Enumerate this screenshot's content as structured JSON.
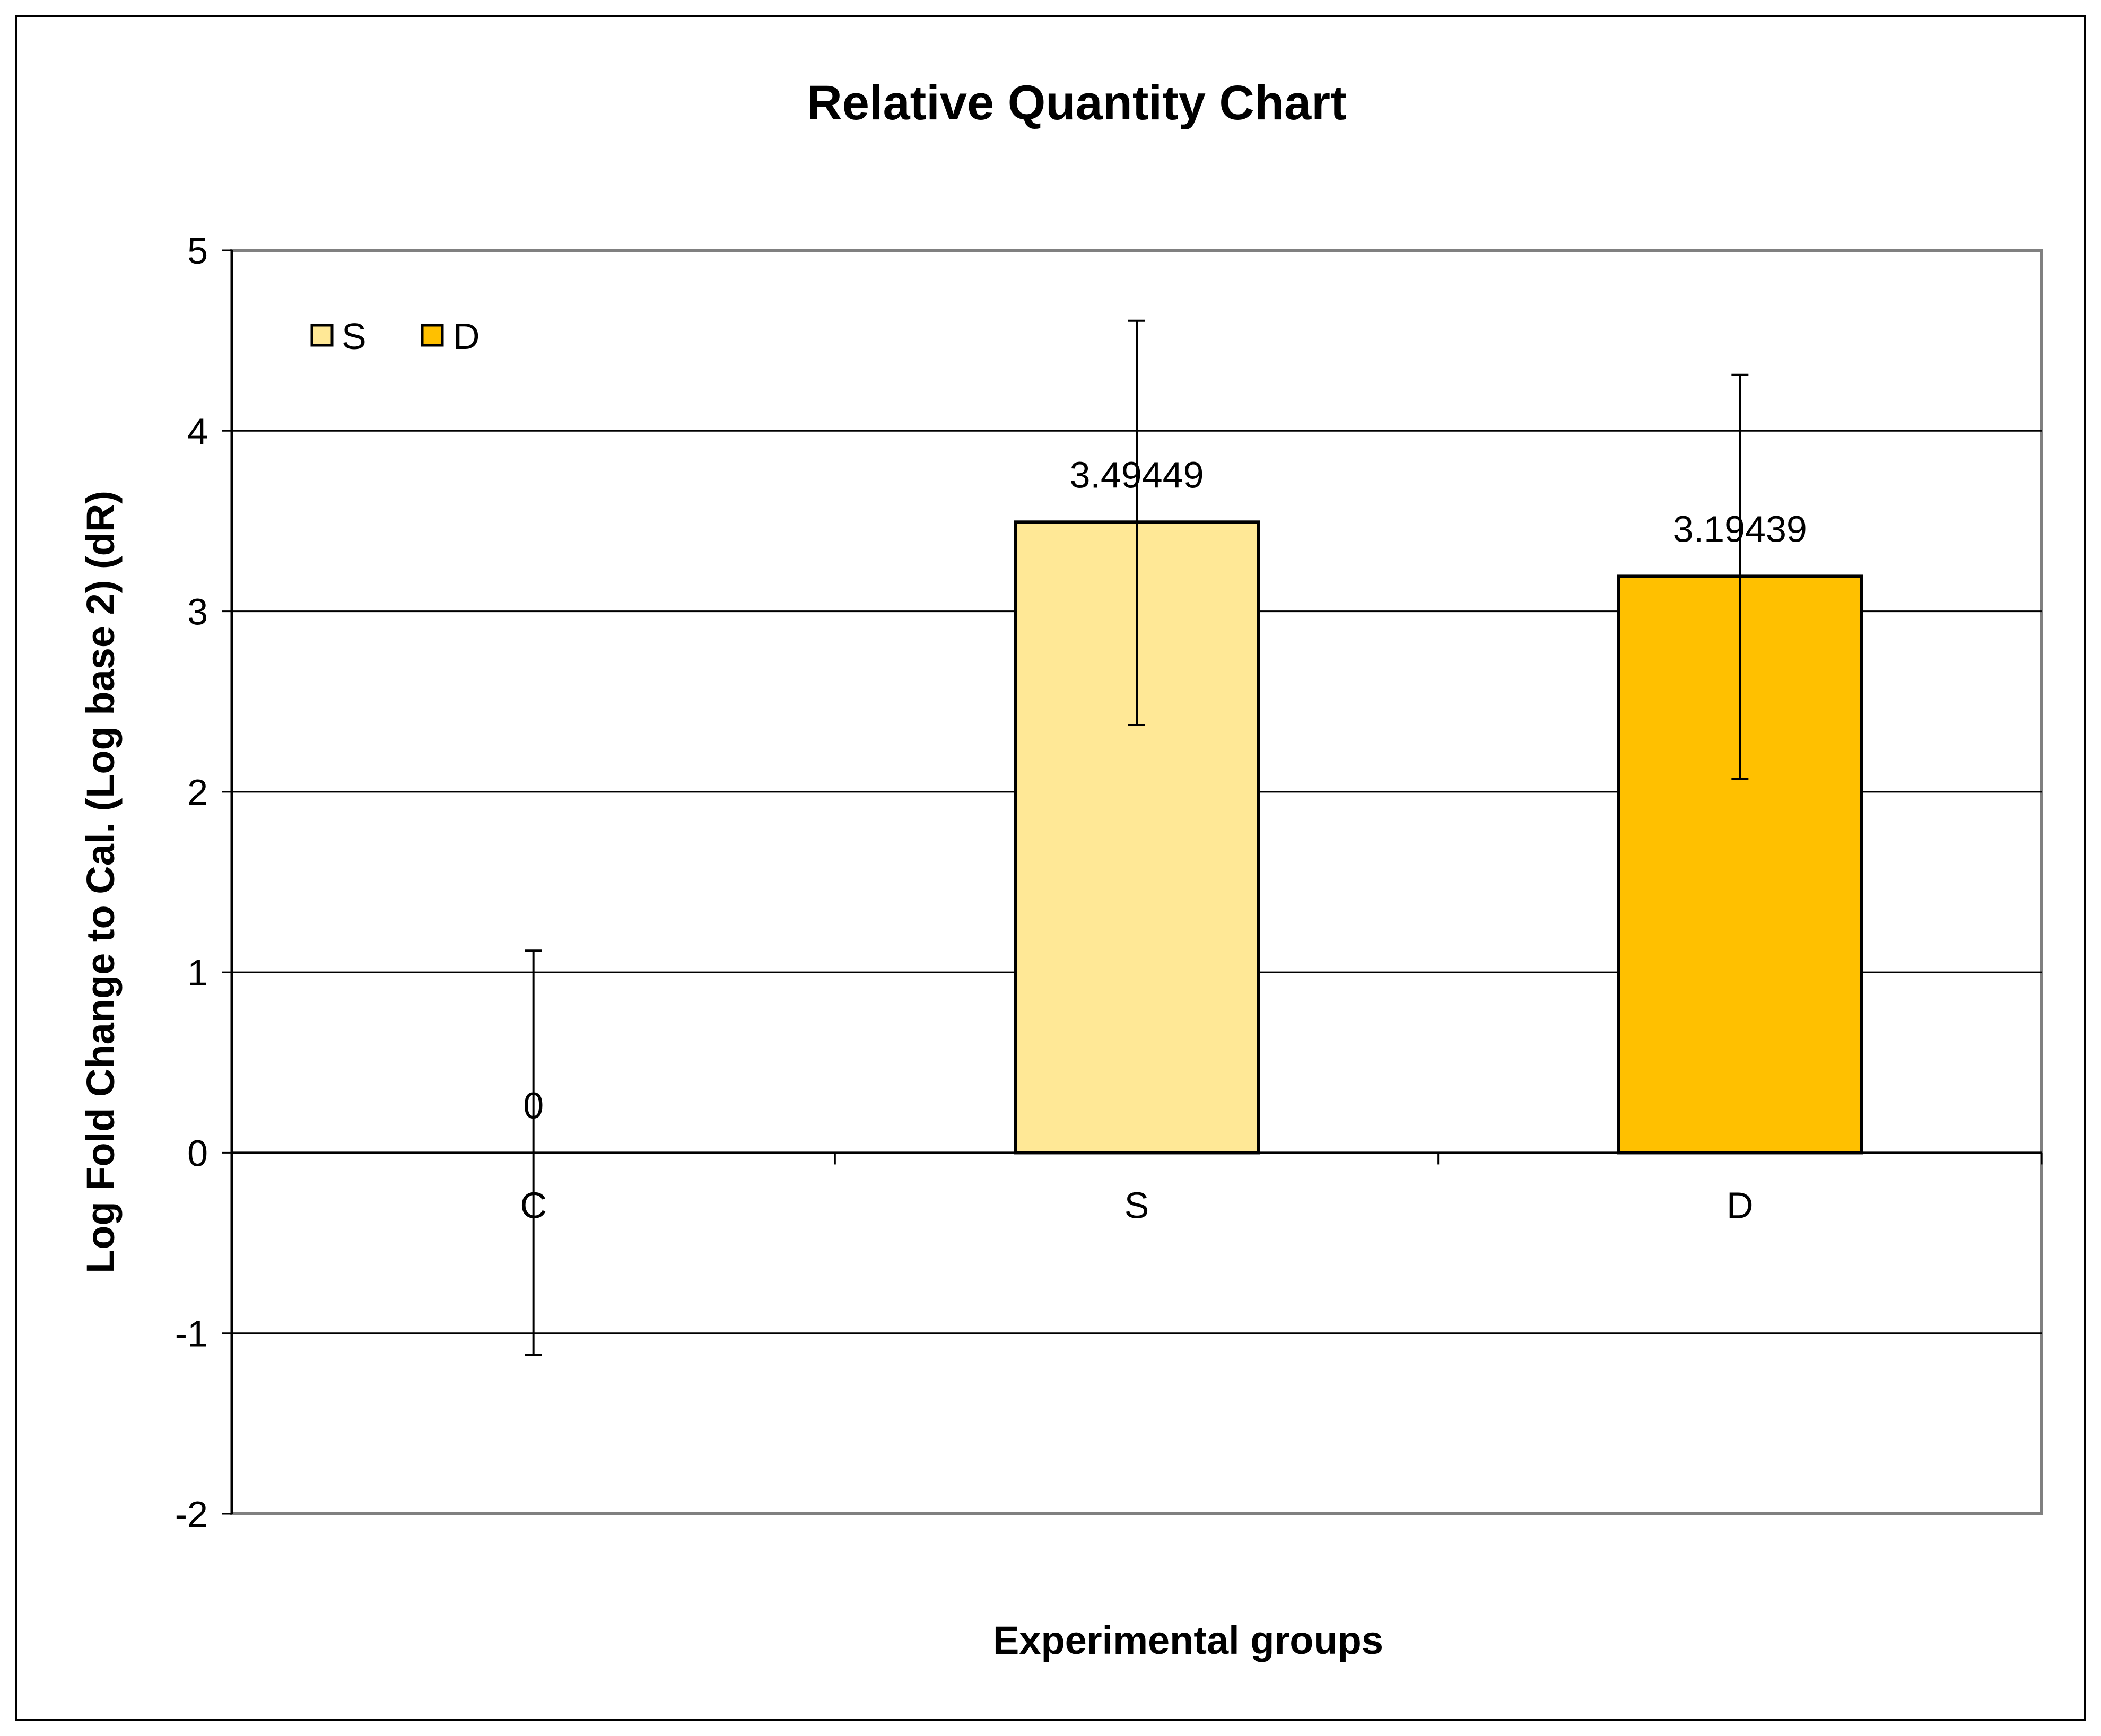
{
  "chart_data": {
    "type": "bar",
    "title": "Relative Quantity Chart",
    "xlabel": "Experimental groups",
    "ylabel": "Log Fold Change to Cal. (Log base 2) (dR)",
    "ylim": [
      -2,
      5
    ],
    "yticks": [
      5,
      4,
      3,
      2,
      1,
      0,
      -1,
      -2
    ],
    "ytick_labels": [
      "5",
      "4",
      "3",
      "2",
      "1",
      "0",
      "-1",
      "-2"
    ],
    "categories": [
      "C",
      "S",
      "D"
    ],
    "values": [
      0,
      3.49449,
      3.19439
    ],
    "data_labels": [
      "0",
      "3.49449",
      "3.19439"
    ],
    "error_low": [
      -1.12,
      2.37,
      2.07
    ],
    "error_high": [
      1.12,
      4.61,
      4.31
    ],
    "bar_colors": [
      "#ffffff",
      "#FFE896",
      "#FFC000"
    ],
    "grid": true,
    "legend": {
      "placement": "top-left",
      "entries": [
        {
          "label": "S",
          "color": "#FFE896"
        },
        {
          "label": "D",
          "color": "#FFC000"
        }
      ]
    }
  }
}
